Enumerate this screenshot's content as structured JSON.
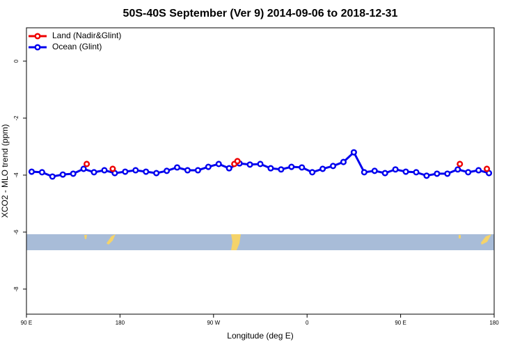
{
  "chart_data": {
    "type": "line",
    "title": "50S-40S September (Ver 9)   2014-09-06 to 2018-12-31",
    "xlabel": "Longitude (deg E)",
    "ylabel": "XCO2 - MLO trend (ppm)",
    "xlim": [
      90,
      540
    ],
    "ylim": [
      1.17,
      -8.88
    ],
    "xticks": [
      {
        "value": 90,
        "label": "90 E"
      },
      180,
      {
        "value": 270,
        "label": "90 W"
      },
      {
        "value": 360,
        "label": "0"
      },
      {
        "value": 450,
        "label": "90 E"
      },
      {
        "value": 540,
        "label": "180"
      }
    ],
    "yticks": [
      0,
      -2,
      -4,
      -6,
      -8
    ],
    "legend": "top-left",
    "series": [
      {
        "name": "Land (Nadir&Glint)",
        "color": "#ee0000",
        "x": [
          148,
          173,
          290,
          293,
          507,
          533
        ],
        "values": [
          -3.61,
          -3.78,
          -3.61,
          -3.51,
          -3.61,
          -3.78
        ]
      },
      {
        "name": "Ocean (Glint)",
        "color": "#0000ee",
        "x": [
          95,
          105,
          115,
          125,
          135,
          145,
          155,
          165,
          175,
          185,
          195,
          205,
          215,
          225,
          235,
          245,
          255,
          265,
          275,
          285,
          295,
          305,
          315,
          325,
          335,
          345,
          355,
          365,
          375,
          385,
          395,
          405,
          415,
          425,
          435,
          445,
          455,
          465,
          475,
          485,
          495,
          505,
          515,
          525,
          535
        ],
        "values": [
          -3.88,
          -3.9,
          -4.05,
          -3.98,
          -3.95,
          -3.78,
          -3.9,
          -3.83,
          -3.93,
          -3.88,
          -3.83,
          -3.88,
          -3.93,
          -3.85,
          -3.73,
          -3.83,
          -3.83,
          -3.71,
          -3.61,
          -3.76,
          -3.59,
          -3.63,
          -3.61,
          -3.76,
          -3.8,
          -3.71,
          -3.73,
          -3.9,
          -3.78,
          -3.68,
          -3.54,
          -3.2,
          -3.9,
          -3.85,
          -3.93,
          -3.8,
          -3.88,
          -3.9,
          -4.02,
          -3.95,
          -3.95,
          -3.8,
          -3.9,
          -3.83,
          -3.93
        ]
      }
    ]
  }
}
